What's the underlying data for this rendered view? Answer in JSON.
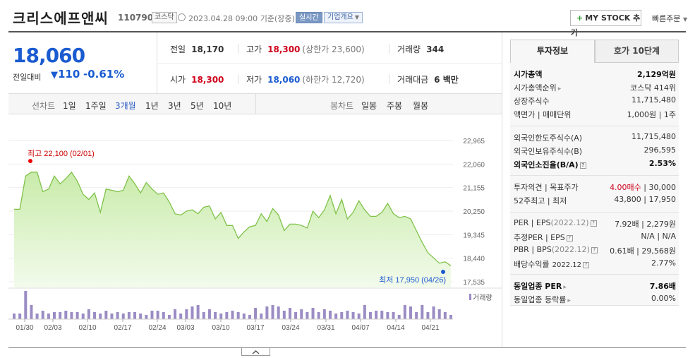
{
  "header": {
    "stock_name": "크리스에프앤씨",
    "stock_code": "110790",
    "market_badge": "코스닥",
    "datetime": "2023.04.28 09:00",
    "basis": "기준(장중)",
    "realtime_button": "실시간",
    "corp_overview_button": "기업개요",
    "mystock_button": "MY STOCK 추가",
    "quick_order": "빠른주문"
  },
  "price": {
    "current": "18,060",
    "change_label": "전일대비",
    "change_value": "110",
    "change_pct": "-0.61%"
  },
  "stats": {
    "prev_close_label": "전일",
    "prev_close": "18,170",
    "high_label": "고가",
    "high": "18,300",
    "upper_limit": "(상한가 23,600)",
    "volume_label": "거래량",
    "volume": "344",
    "open_label": "시가",
    "open": "18,300",
    "low_label": "저가",
    "low": "18,060",
    "lower_limit": "(하한가 12,720)",
    "amount_label": "거래대금",
    "amount": "6 백만"
  },
  "period_bar": {
    "line_label": "선차트",
    "periods": [
      "1일",
      "1주일",
      "3개월",
      "1년",
      "3년",
      "5년",
      "10년"
    ],
    "active_period": "3개월",
    "candle_label": "봉차트",
    "candle_periods": [
      "일봉",
      "주봉",
      "월봉"
    ]
  },
  "chart_data": {
    "type": "area",
    "x_ticks": [
      "01/30",
      "02/03",
      "02/10",
      "02/17",
      "02/24",
      "03/03",
      "03/10",
      "03/17",
      "03/24",
      "03/31",
      "04/07",
      "04/14",
      "04/21"
    ],
    "y_ticks": [
      22965,
      22060,
      21155,
      20250,
      19345,
      18440,
      17535
    ],
    "ylim": [
      17535,
      22965
    ],
    "price": [
      20320,
      20320,
      21600,
      21750,
      21750,
      21000,
      21100,
      21600,
      21300,
      21500,
      21750,
      21400,
      20900,
      20700,
      20950,
      20200,
      21100,
      21050,
      21000,
      21050,
      21600,
      21300,
      20950,
      21350,
      21100,
      20900,
      20950,
      20600,
      20150,
      20100,
      20250,
      20300,
      20150,
      20400,
      20450,
      19950,
      20200,
      19700,
      19700,
      19200,
      19450,
      19650,
      19700,
      20150,
      19850,
      20350,
      20100,
      19500,
      19750,
      19750,
      19700,
      19600,
      20250,
      20000,
      20300,
      20850,
      20150,
      20700,
      19950,
      20200,
      20650,
      20300,
      20050,
      20050,
      20200,
      20550,
      20150,
      20000,
      20050,
      19950,
      19500,
      19050,
      18650,
      18450,
      18250,
      18300,
      18150
    ],
    "high_point": {
      "index": 3,
      "label": "최고",
      "value": "22,100",
      "date": "(02/01)"
    },
    "low_point": {
      "index": 75,
      "label": "최저",
      "value": "17,950",
      "date": "(04/26)"
    },
    "volume": [
      0.2,
      0.2,
      1.0,
      0.5,
      0.2,
      0.3,
      0.2,
      0.25,
      0.25,
      0.3,
      0.25,
      0.25,
      0.2,
      0.35,
      0.25,
      0.2,
      0.3,
      0.2,
      0.25,
      0.2,
      0.25,
      0.25,
      0.2,
      0.15,
      0.3,
      0.3,
      0.25,
      0.15,
      0.35,
      0.2,
      0.35,
      0.45,
      0.5,
      0.25,
      0.35,
      0.25,
      0.2,
      0.25,
      0.3,
      0.25,
      0.2,
      0.15,
      0.4,
      0.2,
      0.45,
      0.5,
      0.45,
      0.3,
      0.4,
      0.25,
      0.35,
      0.25,
      0.4,
      0.25,
      0.35,
      0.3,
      0.2,
      0.25,
      0.3,
      0.25,
      0.2,
      0.5,
      0.25,
      0.3,
      0.3,
      0.25,
      0.25,
      0.15,
      0.5,
      0.45,
      0.25,
      0.5,
      0.25,
      0.45,
      0.35,
      0.25,
      0.15
    ],
    "volume_legend": "거래량",
    "line_color": "#7fc24a",
    "fill_color": "#dff2c9",
    "volume_color": "#9b8cc4"
  },
  "right_panel": {
    "tab_active": "투자정보",
    "tab_other": "호가 10단계",
    "g1": [
      {
        "k": "시가총액",
        "v": "2,129억원",
        "bold": true
      },
      {
        "k": "시가총액순위",
        "v": "코스닥 414위",
        "arrow": true
      },
      {
        "k": "상장주식수",
        "v": "11,715,480"
      },
      {
        "k": "액면가 | 매매단위",
        "v": "1,000원 | 1주"
      }
    ],
    "g2": [
      {
        "k": "외국인한도주식수(A)",
        "v": "11,715,480"
      },
      {
        "k": "외국인보유주식수(B)",
        "v": "296,595"
      },
      {
        "k": "외국인소진율(B/A)",
        "v": "2.53%",
        "bold": true,
        "help": true
      }
    ],
    "g3": [
      {
        "k": "투자의견 | 목표주가",
        "v_red": "4.00매수",
        "v": " | 30,000"
      },
      {
        "k": "52주최고 | 최저",
        "v": "43,800 | 17,950"
      }
    ],
    "g4": [
      {
        "k": "PER | EPS",
        "k_sub": "(2022.12)",
        "help": true,
        "v": "7.92배 | 2,279원"
      },
      {
        "k": "추정PER | EPS",
        "help": true,
        "v": "N/A | N/A"
      },
      {
        "k": "PBR | BPS",
        "k_sub": "(2022.12)",
        "help": true,
        "v": "0.61배 | 29,568원"
      },
      {
        "k": "배당수익률",
        "k_sub2": "2022.12",
        "help": true,
        "v": "2.77%"
      }
    ],
    "g5": [
      {
        "k": "동일업종 PER",
        "v": "7.86배",
        "bold": true,
        "arrow": true
      },
      {
        "k": "동일업종 등락률",
        "v": "0.00%",
        "arrow": true
      }
    ]
  }
}
